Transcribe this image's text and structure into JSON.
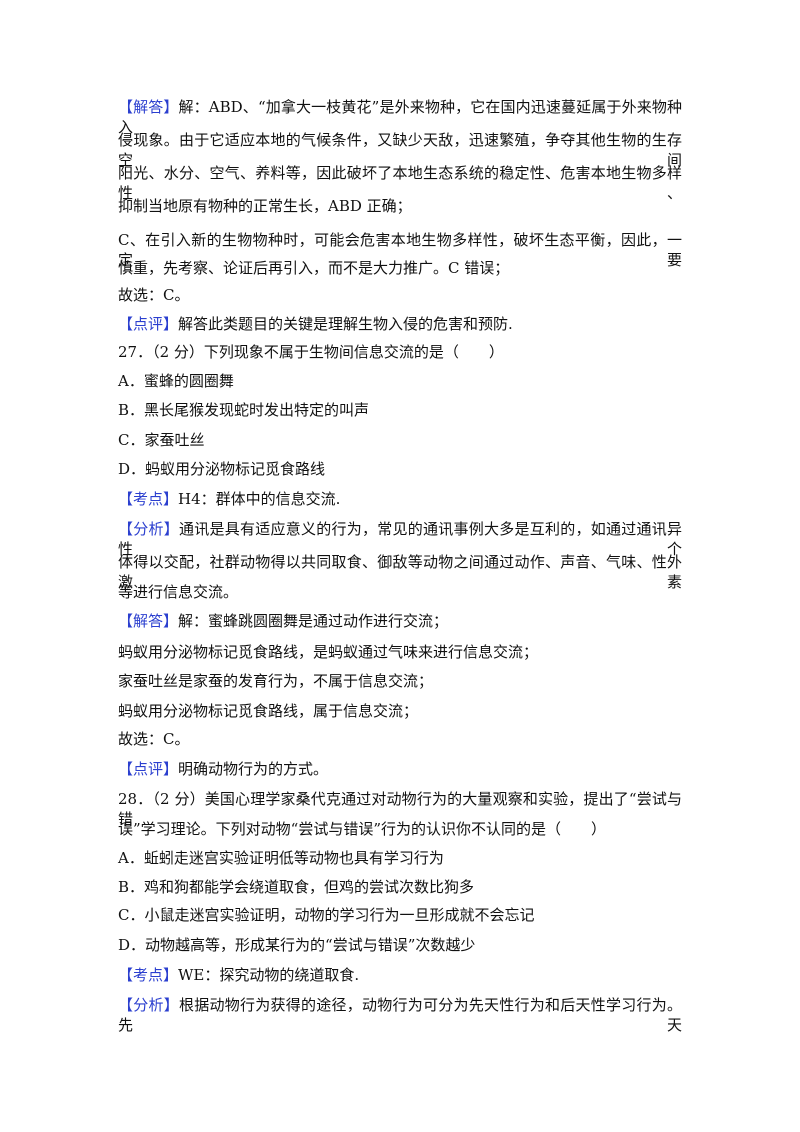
{
  "lines": [
    {
      "tag": "【解答】",
      "text": "解：ABD、“加拿大一枝黄花”是外来物种，它在国内迅速蔓延属于外来物种入"
    },
    {
      "text": "侵现象。由于它适应本地的气候条件，又缺少天敌，迅速繁殖，争夺其他生物的生存空间"
    },
    {
      "text": "阳光、水分、空气、养料等，因此破坏了本地生态系统的稳定性、危害本地生物多样性、"
    },
    {
      "text": "抑制当地原有物种的正常生长，ABD 正确；"
    },
    {
      "text": "C、在引入新的生物物种时，可能会危害本地生物多样性，破坏生态平衡，因此，一定要"
    },
    {
      "text": "慎重，先考察、论证后再引入，而不是大力推广。C 错误；"
    },
    {
      "text": "故选：C。"
    },
    {
      "tag": "【点评】",
      "text": "解答此类题目的关键是理解生物入侵的危害和预防."
    },
    {
      "text": "27．（2 分）下列现象不属于生物间信息交流的是（　　）"
    },
    {
      "text": "A．蜜蜂的圆圈舞"
    },
    {
      "text": "B．黑长尾猴发现蛇时发出特定的叫声"
    },
    {
      "text": "C．家蚕吐丝"
    },
    {
      "text": "D．蚂蚁用分泌物标记觅食路线"
    },
    {
      "tag": "【考点】",
      "text": "H4：群体中的信息交流."
    },
    {
      "tag": "【分析】",
      "text": "通讯是具有适应意义的行为，常见的通讯事例大多是互利的，如通过通讯异性个"
    },
    {
      "text": "体得以交配，社群动物得以共同取食、御敌等动物之间通过动作、声音、气味、性外激素"
    },
    {
      "text": "等进行信息交流。"
    },
    {
      "tag": "【解答】",
      "text": "解：蜜蜂跳圆圈舞是通过动作进行交流；"
    },
    {
      "text": "蚂蚁用分泌物标记觅食路线，是蚂蚁通过气味来进行信息交流；"
    },
    {
      "text": "家蚕吐丝是家蚕的发育行为，不属于信息交流；"
    },
    {
      "text": "蚂蚁用分泌物标记觅食路线，属于信息交流；"
    },
    {
      "text": "故选：C。"
    },
    {
      "tag": "【点评】",
      "text": "明确动物行为的方式。"
    },
    {
      "text": "28．（2 分）美国心理学家桑代克通过对动物行为的大量观察和实验，提出了“尝试与错"
    },
    {
      "text": "误”学习理论。下列对动物“尝试与错误”行为的认识你不认同的是（　　）"
    },
    {
      "text": "A．蚯蚓走迷宫实验证明低等动物也具有学习行为"
    },
    {
      "text": "B．鸡和狗都能学会绕道取食，但鸡的尝试次数比狗多"
    },
    {
      "text": "C．小鼠走迷宫实验证明，动物的学习行为一旦形成就不会忘记"
    },
    {
      "text": "D．动物越高等，形成某行为的“尝试与错误”次数越少"
    },
    {
      "tag": "【考点】",
      "text": "WE：探究动物的绕道取食."
    },
    {
      "tag": "【分析】",
      "text": "根据动物行为获得的途径，动物行为可分为先天性行为和后天性学习行为。先天"
    }
  ]
}
